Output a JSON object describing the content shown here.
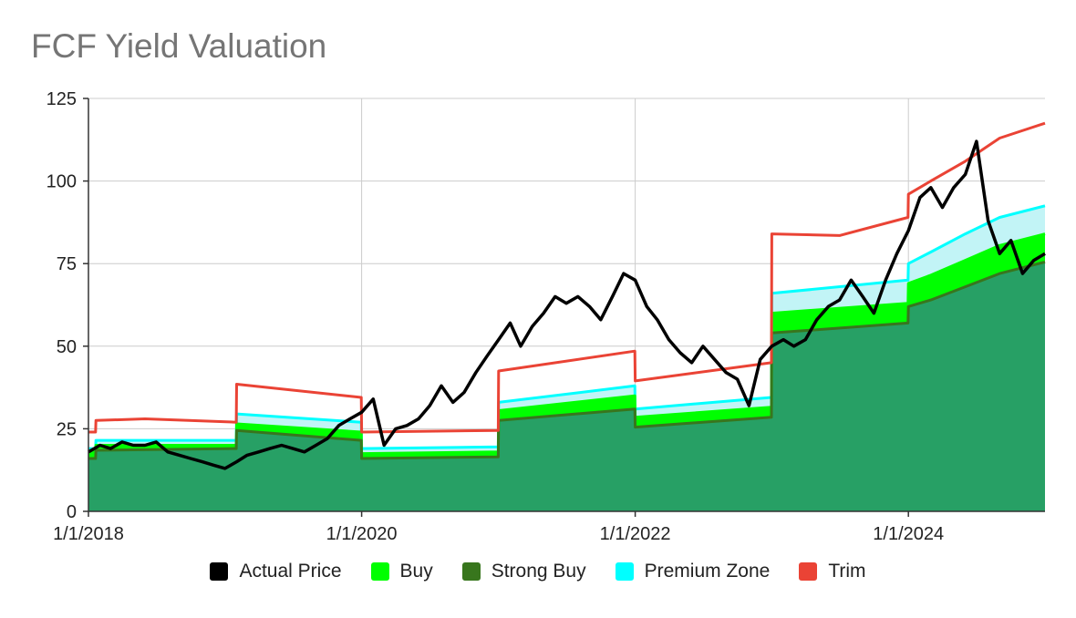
{
  "title": "FCF Yield Valuation",
  "chart_data": {
    "type": "area",
    "title": "FCF Yield Valuation",
    "xlabel": "",
    "ylabel": "",
    "ylim": [
      0,
      125
    ],
    "xlim": [
      "2018-01-01",
      "2024-12-31"
    ],
    "y_ticks": [
      "0",
      "25",
      "50",
      "75",
      "100",
      "125"
    ],
    "x_ticks": [
      {
        "date": "2018-01-01",
        "label": "1/1/2018"
      },
      {
        "date": "2020-01-01",
        "label": "1/1/2020"
      },
      {
        "date": "2022-01-01",
        "label": "1/1/2022"
      },
      {
        "date": "2024-01-01",
        "label": "1/1/2024"
      }
    ],
    "grid": true,
    "legend_position": "bottom",
    "colors": {
      "strong_buy_fill": "#27a065",
      "strong_buy": "#38761d",
      "buy": "#00ff00",
      "premium": "#00ffff",
      "premium_fill": "#c2f4f6",
      "trim": "#ea4335",
      "actual": "#000000"
    },
    "legend": [
      {
        "label": "Actual Price",
        "color": "#000000"
      },
      {
        "label": "Buy",
        "color": "#00ff00"
      },
      {
        "label": "Strong Buy",
        "color": "#38761d"
      },
      {
        "label": "Premium Zone",
        "color": "#00ffff"
      },
      {
        "label": "Trim",
        "color": "#ea4335"
      }
    ],
    "series": [
      {
        "name": "Strong Buy",
        "points": [
          [
            "2018-01-01",
            16
          ],
          [
            "2018-01-20",
            16
          ],
          [
            "2018-01-21",
            18.5
          ],
          [
            "2019-01-31",
            19
          ],
          [
            "2019-02-01",
            24.5
          ],
          [
            "2019-12-31",
            21.5
          ],
          [
            "2020-01-01",
            16
          ],
          [
            "2020-12-31",
            16.5
          ],
          [
            "2021-01-01",
            27.5
          ],
          [
            "2021-12-31",
            31
          ],
          [
            "2022-01-01",
            25.5
          ],
          [
            "2022-12-31",
            28.5
          ],
          [
            "2023-01-01",
            54
          ],
          [
            "2023-12-31",
            57
          ],
          [
            "2024-01-01",
            62
          ],
          [
            "2024-03-01",
            64
          ],
          [
            "2024-06-01",
            68
          ],
          [
            "2024-09-01",
            72
          ],
          [
            "2024-12-31",
            75.5
          ]
        ]
      },
      {
        "name": "Buy",
        "points": [
          [
            "2018-01-01",
            18
          ],
          [
            "2018-01-20",
            18
          ],
          [
            "2018-01-21",
            20
          ],
          [
            "2019-01-31",
            20
          ],
          [
            "2019-02-01",
            26.5
          ],
          [
            "2019-12-31",
            24
          ],
          [
            "2020-01-01",
            17.5
          ],
          [
            "2020-12-31",
            18
          ],
          [
            "2021-01-01",
            30.5
          ],
          [
            "2021-12-31",
            35
          ],
          [
            "2022-01-01",
            28.5
          ],
          [
            "2022-12-31",
            31.5
          ],
          [
            "2023-01-01",
            60
          ],
          [
            "2023-12-31",
            63
          ],
          [
            "2024-01-01",
            69
          ],
          [
            "2024-03-01",
            71.5
          ],
          [
            "2024-06-01",
            76
          ],
          [
            "2024-09-01",
            80.5
          ],
          [
            "2024-12-31",
            84
          ]
        ]
      },
      {
        "name": "Premium Zone",
        "points": [
          [
            "2018-01-01",
            19
          ],
          [
            "2018-01-20",
            19
          ],
          [
            "2018-01-21",
            21.5
          ],
          [
            "2019-01-31",
            21.5
          ],
          [
            "2019-02-01",
            29.5
          ],
          [
            "2019-12-31",
            27
          ],
          [
            "2020-01-01",
            19
          ],
          [
            "2020-12-31",
            19.5
          ],
          [
            "2021-01-01",
            33
          ],
          [
            "2021-12-31",
            38
          ],
          [
            "2022-01-01",
            31
          ],
          [
            "2022-12-31",
            34.5
          ],
          [
            "2023-01-01",
            66
          ],
          [
            "2023-12-31",
            70
          ],
          [
            "2024-01-01",
            75
          ],
          [
            "2024-03-01",
            78.5
          ],
          [
            "2024-06-01",
            84
          ],
          [
            "2024-09-01",
            89
          ],
          [
            "2024-12-31",
            92.5
          ]
        ]
      },
      {
        "name": "Trim",
        "points": [
          [
            "2018-01-01",
            24
          ],
          [
            "2018-01-20",
            24
          ],
          [
            "2018-01-21",
            27.5
          ],
          [
            "2018-06-01",
            28
          ],
          [
            "2019-01-31",
            27
          ],
          [
            "2019-02-01",
            38.5
          ],
          [
            "2019-12-31",
            34.5
          ],
          [
            "2020-01-01",
            24
          ],
          [
            "2020-12-31",
            24.5
          ],
          [
            "2021-01-01",
            42.5
          ],
          [
            "2021-12-31",
            48.5
          ],
          [
            "2022-01-01",
            39.5
          ],
          [
            "2022-12-31",
            45
          ],
          [
            "2023-01-01",
            84
          ],
          [
            "2023-07-01",
            83.5
          ],
          [
            "2023-12-31",
            89
          ],
          [
            "2024-01-01",
            96
          ],
          [
            "2024-03-01",
            100
          ],
          [
            "2024-06-01",
            106
          ],
          [
            "2024-09-01",
            113
          ],
          [
            "2024-12-31",
            117.5
          ]
        ]
      },
      {
        "name": "Actual Price",
        "points": [
          [
            "2018-01-01",
            18
          ],
          [
            "2018-02-01",
            20
          ],
          [
            "2018-03-01",
            19
          ],
          [
            "2018-04-01",
            21
          ],
          [
            "2018-05-01",
            20
          ],
          [
            "2018-06-01",
            20
          ],
          [
            "2018-07-01",
            21
          ],
          [
            "2018-08-01",
            18
          ],
          [
            "2018-09-01",
            17
          ],
          [
            "2018-10-01",
            16
          ],
          [
            "2018-11-01",
            15
          ],
          [
            "2018-12-01",
            14
          ],
          [
            "2019-01-01",
            13
          ],
          [
            "2019-02-01",
            15
          ],
          [
            "2019-03-01",
            17
          ],
          [
            "2019-04-01",
            18
          ],
          [
            "2019-05-01",
            19
          ],
          [
            "2019-06-01",
            20
          ],
          [
            "2019-07-01",
            19
          ],
          [
            "2019-08-01",
            18
          ],
          [
            "2019-09-01",
            20
          ],
          [
            "2019-10-01",
            22
          ],
          [
            "2019-11-01",
            26
          ],
          [
            "2019-12-01",
            28
          ],
          [
            "2020-01-01",
            30
          ],
          [
            "2020-02-01",
            34
          ],
          [
            "2020-03-01",
            20
          ],
          [
            "2020-04-01",
            25
          ],
          [
            "2020-05-01",
            26
          ],
          [
            "2020-06-01",
            28
          ],
          [
            "2020-07-01",
            32
          ],
          [
            "2020-08-01",
            38
          ],
          [
            "2020-09-01",
            33
          ],
          [
            "2020-10-01",
            36
          ],
          [
            "2020-11-01",
            42
          ],
          [
            "2020-12-01",
            47
          ],
          [
            "2021-01-01",
            52
          ],
          [
            "2021-02-01",
            57
          ],
          [
            "2021-03-01",
            50
          ],
          [
            "2021-04-01",
            56
          ],
          [
            "2021-05-01",
            60
          ],
          [
            "2021-06-01",
            65
          ],
          [
            "2021-07-01",
            63
          ],
          [
            "2021-08-01",
            65
          ],
          [
            "2021-09-01",
            62
          ],
          [
            "2021-10-01",
            58
          ],
          [
            "2021-11-01",
            65
          ],
          [
            "2021-12-01",
            72
          ],
          [
            "2022-01-01",
            70
          ],
          [
            "2022-02-01",
            62
          ],
          [
            "2022-03-01",
            58
          ],
          [
            "2022-04-01",
            52
          ],
          [
            "2022-05-01",
            48
          ],
          [
            "2022-06-01",
            45
          ],
          [
            "2022-07-01",
            50
          ],
          [
            "2022-08-01",
            46
          ],
          [
            "2022-09-01",
            42
          ],
          [
            "2022-10-01",
            40
          ],
          [
            "2022-11-01",
            32
          ],
          [
            "2022-12-01",
            46
          ],
          [
            "2023-01-01",
            50
          ],
          [
            "2023-02-01",
            52
          ],
          [
            "2023-03-01",
            50
          ],
          [
            "2023-04-01",
            52
          ],
          [
            "2023-05-01",
            58
          ],
          [
            "2023-06-01",
            62
          ],
          [
            "2023-07-01",
            64
          ],
          [
            "2023-08-01",
            70
          ],
          [
            "2023-09-01",
            65
          ],
          [
            "2023-10-01",
            60
          ],
          [
            "2023-11-01",
            70
          ],
          [
            "2023-12-01",
            78
          ],
          [
            "2024-01-01",
            85
          ],
          [
            "2024-02-01",
            95
          ],
          [
            "2024-03-01",
            98
          ],
          [
            "2024-04-01",
            92
          ],
          [
            "2024-05-01",
            98
          ],
          [
            "2024-06-01",
            102
          ],
          [
            "2024-07-01",
            112
          ],
          [
            "2024-08-01",
            88
          ],
          [
            "2024-09-01",
            78
          ],
          [
            "2024-10-01",
            82
          ],
          [
            "2024-11-01",
            72
          ],
          [
            "2024-12-01",
            76
          ],
          [
            "2024-12-31",
            78
          ]
        ]
      }
    ]
  }
}
